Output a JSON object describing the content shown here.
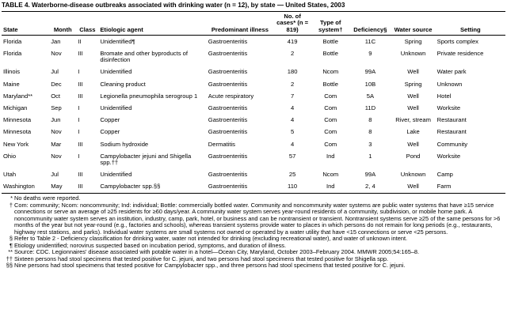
{
  "title": "TABLE 4. Waterborne-disease outbreaks associated with drinking water (n = 12), by state — United States, 2003",
  "table": {
    "headers": [
      "State",
      "Month",
      "Class",
      "Etiologic agent",
      "Predominant illness",
      "No. of cases* (n = 819)",
      "Type of system†",
      "Deficiency§",
      "Water source",
      "Setting"
    ],
    "rows": [
      [
        "Florida",
        "Jan",
        "II",
        "Unidentified¶",
        "Gastroenteritis",
        419,
        "Bottle",
        "11C",
        "Spring",
        "Sports complex"
      ],
      [
        "Florida",
        "Nov",
        "III",
        "Bromate and other byproducts of disinfection",
        "Gastroenteritis",
        2,
        "Bottle",
        "9",
        "Unknown",
        "Private residence"
      ],
      [
        "Illinois",
        "Jul",
        "I",
        "Unidentified",
        "Gastroenteritis",
        180,
        "Ncom",
        "99A",
        "Well",
        "Water park"
      ],
      [
        "Maine",
        "Dec",
        "III",
        "Cleaning product",
        "Gastroenteritis",
        2,
        "Bottle",
        "10B",
        "Spring",
        "Unknown"
      ],
      [
        "Maryland**",
        "Oct",
        "III",
        "Legionella pneumophila serogroup 1",
        "Acute respiratory",
        7,
        "Com",
        "5A",
        "Well",
        "Hotel"
      ],
      [
        "Michigan",
        "Sep",
        "I",
        "Unidentified",
        "Gastroenteritis",
        4,
        "Com",
        "11D",
        "Well",
        "Worksite"
      ],
      [
        "Minnesota",
        "Jun",
        "I",
        "Copper",
        "Gastroenteritis",
        4,
        "Com",
        "8",
        "River, stream",
        "Restaurant"
      ],
      [
        "Minnesota",
        "Nov",
        "I",
        "Copper",
        "Gastroenteritis",
        5,
        "Com",
        "8",
        "Lake",
        "Restaurant"
      ],
      [
        "New York",
        "Mar",
        "III",
        "Sodium hydroxide",
        "Dermatitis",
        4,
        "Com",
        "3",
        "Well",
        "Community"
      ],
      [
        "Ohio",
        "Nov",
        "I",
        "Campylobacter jejuni and Shigella spp.††",
        "Gastroenteritis",
        57,
        "Ind",
        "1",
        "Pond",
        "Worksite"
      ],
      [
        "Utah",
        "Jul",
        "III",
        "Unidentified",
        "Gastroenteritis",
        25,
        "Ncom",
        "99A",
        "Unknown",
        "Camp"
      ],
      [
        "Washington",
        "May",
        "III",
        "Campylobacter spp.§§",
        "Gastroenteritis",
        110,
        "Ind",
        "2, 4",
        "Well",
        "Farm"
      ]
    ]
  },
  "footnotes": [
    {
      "mark": "*",
      "text": "No deaths were reported."
    },
    {
      "mark": "†",
      "text": "Com: community; Ncom: noncommunity; Ind: individual; Bottle: commercially bottled water. Community and noncommunity water systems are public water systems that have ≥15 service connections or serve an average of ≥25 residents for ≥60 days/year. A community water system serves year-round residents of a community, subdivision, or mobile home park. A noncommunity water system serves an institution, industry, camp, park, hotel, or business and can be nontransient or transient. Nontransient systems serve ≥25 of the same persons for >6 months of the year but not year-round (e.g., factories and schools), whereas transient systems provide water to places in which persons do not remain for long periods (e.g., restaurants, highway rest stations, and parks). Individual water systems are small systems not owned or operated by a water utility that have <15 connections or serve <25 persons."
    },
    {
      "mark": "§",
      "text": "Refer to Table 2 - Deficiency classification for drinking water, water not intended for drinking (excluding recreational water), and water of unknown intent."
    },
    {
      "mark": "¶",
      "text": "Etiology unidentified; norovirus suspected based on incubation period, symptoms, and duration of illness."
    },
    {
      "mark": "**",
      "text": "Source: CDC. Legionnaires' disease associated with potable water in a hotel—Ocean City, Maryland, October 2003–February 2004. MMWR 2005;54:165–8."
    },
    {
      "mark": "††",
      "text": "Sixteen persons had stool specimens that tested positive for C. jejuni, and two persons had stool specimens that tested positive for Shigella spp."
    },
    {
      "mark": "§§",
      "text": "Nine persons had stool specimens that tested positive for Campylobacter spp., and three persons had stool specimens that tested positive for C. jejuni."
    }
  ]
}
